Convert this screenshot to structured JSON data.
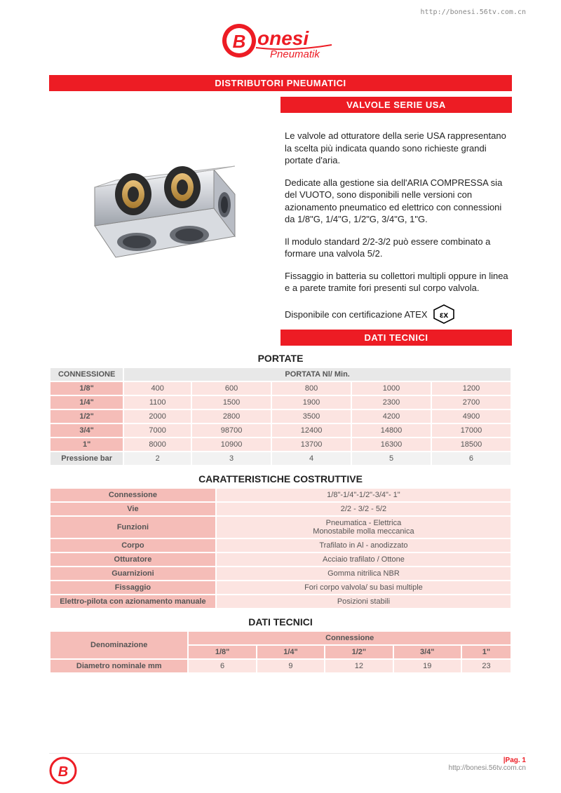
{
  "brand": {
    "name": "Bonesi",
    "sub": "Pneumatik"
  },
  "url_top": "http://bonesi.56tv.com.cn",
  "url_bottom": "http://bonesi.56tv.com.cn",
  "bar_main": "DISTRIBUTORI PNEUMATICI",
  "bar_sub": "VALVOLE SERIE USA",
  "bar_dati": "DATI TECNICI",
  "paragraphs": {
    "p1": "Le valvole ad otturatore della serie USA rappresentano la scelta più indicata quando sono richieste grandi portate d'aria.",
    "p2": "Dedicate alla gestione sia dell'ARIA COMPRESSA sia del VUOTO, sono disponibili nelle versioni con azionamento pneumatico ed elettrico con connessioni da 1/8\"G, 1/4\"G, 1/2\"G, 3/4\"G, 1\"G.",
    "p3": "Il modulo standard 2/2-3/2 può essere combinato a formare una valvola 5/2.",
    "p4": "Fissaggio in batteria su collettori multipli oppure in linea e a parete tramite fori presenti sul corpo valvola.",
    "p5": "Disponibile con certificazione ATEX"
  },
  "section_portate": "PORTATE",
  "section_caratt": "CARATTERISTICHE COSTRUTTIVE",
  "section_dati": "DATI TECNICI",
  "portate": {
    "head_conn": "CONNESSIONE",
    "head_portata": "PORTATA Nl/ Min.",
    "rows": [
      {
        "c": "1/8\"",
        "v": [
          "400",
          "600",
          "800",
          "1000",
          "1200"
        ]
      },
      {
        "c": "1/4\"",
        "v": [
          "1100",
          "1500",
          "1900",
          "2300",
          "2700"
        ]
      },
      {
        "c": "1/2\"",
        "v": [
          "2000",
          "2800",
          "3500",
          "4200",
          "4900"
        ]
      },
      {
        "c": "3/4\"",
        "v": [
          "7000",
          "98700",
          "12400",
          "14800",
          "17000"
        ]
      },
      {
        "c": "1\"",
        "v": [
          "8000",
          "10900",
          "13700",
          "16300",
          "18500"
        ]
      }
    ],
    "press_label": "Pressione bar",
    "press": [
      "2",
      "3",
      "4",
      "5",
      "6"
    ]
  },
  "caratt": {
    "rows": [
      {
        "k": "Connessione",
        "v": "1/8\"-1/4\"-1/2\"-3/4\"- 1\""
      },
      {
        "k": "Vie",
        "v": "2/2 - 3/2 - 5/2"
      },
      {
        "k": "Funzioni",
        "v": "Pneumatica - Elettrica\nMonostabile molla meccanica"
      },
      {
        "k": "Corpo",
        "v": "Trafilato in Al - anodizzato"
      },
      {
        "k": "Otturatore",
        "v": "Acciaio trafilato / Ottone"
      },
      {
        "k": "Guarnizioni",
        "v": "Gomma nitrilica NBR"
      },
      {
        "k": "Fissaggio",
        "v": "Fori corpo valvola/ su basi multiple"
      },
      {
        "k": "Elettro-pilota con azionamento manuale",
        "v": "Posizioni stabili"
      }
    ]
  },
  "dati": {
    "head_denom": "Denominazione",
    "head_conn": "Connessione",
    "cols": [
      "1/8\"",
      "1/4\"",
      "1/2\"",
      "3/4\"",
      "1\""
    ],
    "row_label": "Diametro nominale mm",
    "row_vals": [
      "6",
      "9",
      "12",
      "19",
      "23"
    ]
  },
  "footer": {
    "page": "|Pag. 1"
  },
  "colors": {
    "red": "#ed1c24",
    "pink_header": "#f5bdb8",
    "pink_light": "#fce4e1",
    "grey_light": "#f2f2f2",
    "grey_header": "#e8e8e8"
  }
}
